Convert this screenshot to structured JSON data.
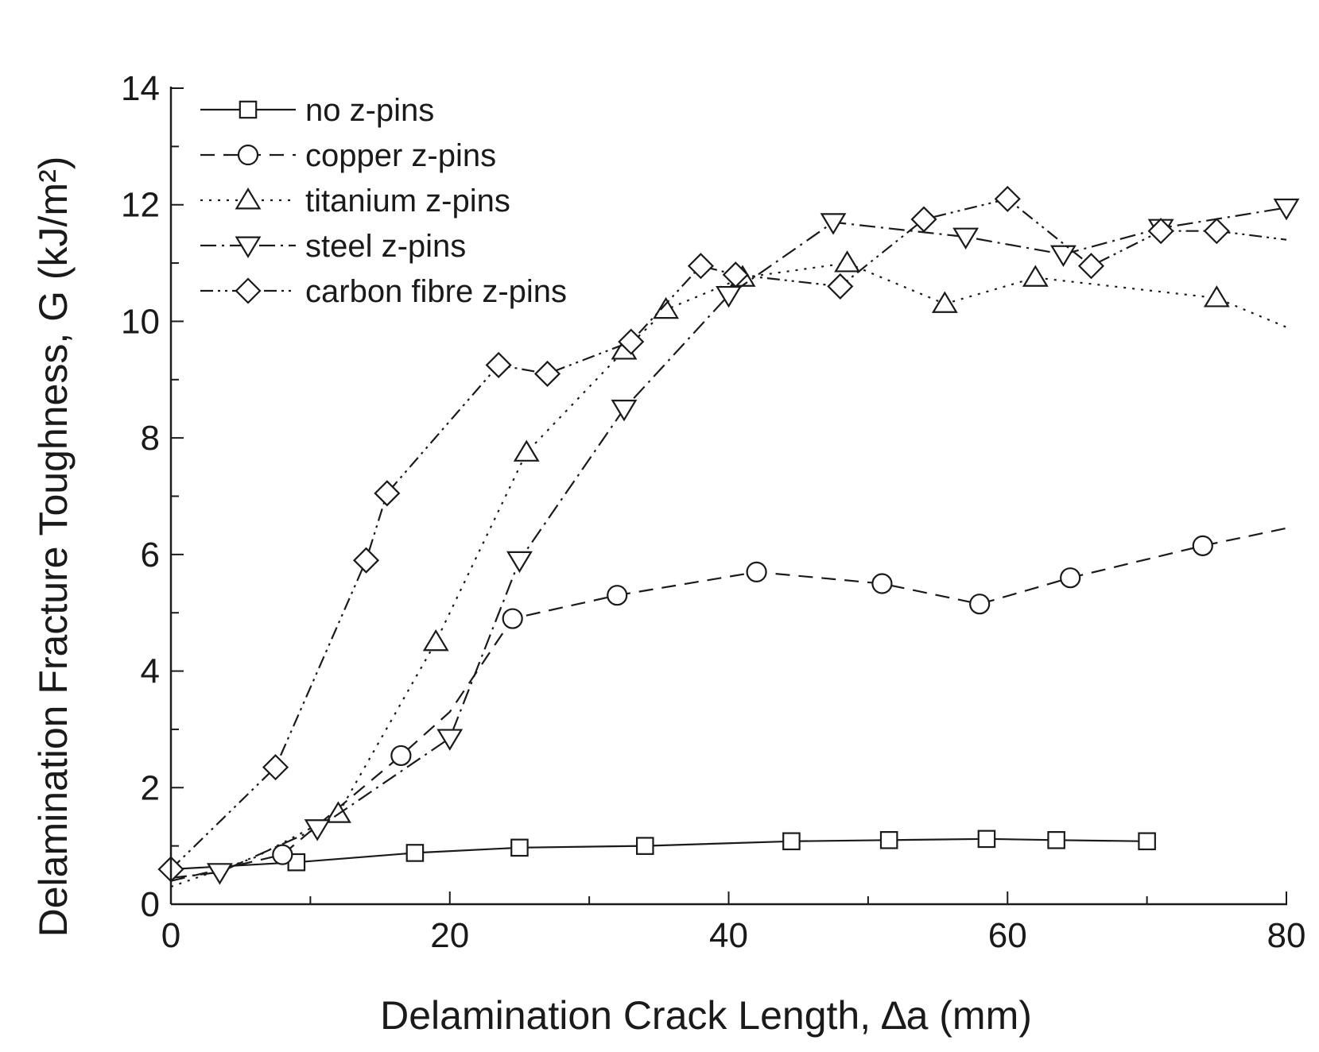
{
  "chart_data": {
    "type": "line",
    "xlabel": "Delamination Crack Length, ∆a (mm)",
    "ylabel": "Delamination Fracture Toughness, G (kJ/m²)",
    "xlim": [
      0,
      80
    ],
    "ylim": [
      0,
      14
    ],
    "xticks": [
      "0",
      "20",
      "40",
      "60",
      "80"
    ],
    "yticks": [
      "0",
      "2",
      "4",
      "6",
      "8",
      "10",
      "12",
      "14"
    ],
    "grid": false,
    "legend_position": "top-left",
    "series": [
      {
        "name": "no z-pins",
        "line_style": "solid",
        "marker": "square",
        "line": [
          [
            0,
            0.6
          ],
          [
            9,
            0.72
          ],
          [
            17.5,
            0.88
          ],
          [
            25,
            0.97
          ],
          [
            34,
            1.0
          ],
          [
            44.5,
            1.08
          ],
          [
            51.5,
            1.1
          ],
          [
            58.5,
            1.12
          ],
          [
            63.5,
            1.1
          ],
          [
            70,
            1.08
          ]
        ],
        "points": [
          [
            9,
            0.72
          ],
          [
            17.5,
            0.88
          ],
          [
            25,
            0.97
          ],
          [
            34,
            1.0
          ],
          [
            44.5,
            1.08
          ],
          [
            51.5,
            1.1
          ],
          [
            58.5,
            1.12
          ],
          [
            63.5,
            1.1
          ],
          [
            70,
            1.08
          ]
        ]
      },
      {
        "name": "copper z-pins",
        "line_style": "dashed",
        "marker": "circle",
        "line": [
          [
            0,
            0.4
          ],
          [
            8,
            0.85
          ],
          [
            16.5,
            2.55
          ],
          [
            20,
            3.3
          ],
          [
            24.5,
            4.9
          ],
          [
            32,
            5.3
          ],
          [
            42,
            5.7
          ],
          [
            51,
            5.5
          ],
          [
            58,
            5.15
          ],
          [
            64.5,
            5.6
          ],
          [
            74,
            6.15
          ],
          [
            80,
            6.45
          ]
        ],
        "points": [
          [
            8,
            0.85
          ],
          [
            16.5,
            2.55
          ],
          [
            24.5,
            4.9
          ],
          [
            32,
            5.3
          ],
          [
            42,
            5.7
          ],
          [
            51,
            5.5
          ],
          [
            58,
            5.15
          ],
          [
            64.5,
            5.6
          ],
          [
            74,
            6.15
          ]
        ]
      },
      {
        "name": "titanium z-pins",
        "line_style": "dotted",
        "marker": "triangle-up",
        "line": [
          [
            0,
            0.3
          ],
          [
            6,
            0.8
          ],
          [
            12,
            1.55
          ],
          [
            19,
            4.5
          ],
          [
            25.5,
            7.75
          ],
          [
            32.5,
            9.5
          ],
          [
            35.5,
            10.2
          ],
          [
            41,
            10.75
          ],
          [
            48.5,
            11.0
          ],
          [
            55.5,
            10.3
          ],
          [
            62,
            10.75
          ],
          [
            75,
            10.4
          ],
          [
            80,
            9.9
          ]
        ],
        "points": [
          [
            12,
            1.55
          ],
          [
            19,
            4.5
          ],
          [
            25.5,
            7.75
          ],
          [
            32.5,
            9.5
          ],
          [
            35.5,
            10.2
          ],
          [
            41,
            10.75
          ],
          [
            48.5,
            11.0
          ],
          [
            55.5,
            10.3
          ],
          [
            62,
            10.75
          ],
          [
            75,
            10.4
          ]
        ]
      },
      {
        "name": "steel z-pins",
        "line_style": "dash-dot",
        "marker": "triangle-down",
        "line": [
          [
            0,
            0.45
          ],
          [
            3.5,
            0.55
          ],
          [
            10.5,
            1.3
          ],
          [
            20,
            2.85
          ],
          [
            25,
            5.9
          ],
          [
            32.5,
            8.5
          ],
          [
            40,
            10.45
          ],
          [
            47.5,
            11.7
          ],
          [
            57,
            11.45
          ],
          [
            64,
            11.15
          ],
          [
            71,
            11.6
          ],
          [
            80,
            11.95
          ]
        ],
        "points": [
          [
            3.5,
            0.55
          ],
          [
            10.5,
            1.3
          ],
          [
            20,
            2.85
          ],
          [
            25,
            5.9
          ],
          [
            32.5,
            8.5
          ],
          [
            40,
            10.45
          ],
          [
            47.5,
            11.7
          ],
          [
            57,
            11.45
          ],
          [
            64,
            11.15
          ],
          [
            71,
            11.6
          ],
          [
            80,
            11.95
          ]
        ]
      },
      {
        "name": "carbon fibre z-pins",
        "line_style": "dash-dot-dot",
        "marker": "diamond",
        "line": [
          [
            0,
            0.6
          ],
          [
            7.5,
            2.35
          ],
          [
            14,
            5.9
          ],
          [
            15.5,
            7.05
          ],
          [
            23.5,
            9.25
          ],
          [
            27,
            9.1
          ],
          [
            33,
            9.65
          ],
          [
            38,
            10.95
          ],
          [
            40.5,
            10.8
          ],
          [
            48,
            10.6
          ],
          [
            54,
            11.75
          ],
          [
            60,
            12.1
          ],
          [
            66,
            10.95
          ],
          [
            71,
            11.55
          ],
          [
            75,
            11.55
          ],
          [
            80,
            11.4
          ]
        ],
        "points": [
          [
            0,
            0.6
          ],
          [
            7.5,
            2.35
          ],
          [
            14,
            5.9
          ],
          [
            15.5,
            7.05
          ],
          [
            23.5,
            9.25
          ],
          [
            27,
            9.1
          ],
          [
            33,
            9.65
          ],
          [
            38,
            10.95
          ],
          [
            40.5,
            10.8
          ],
          [
            48,
            10.6
          ],
          [
            54,
            11.75
          ],
          [
            60,
            12.1
          ],
          [
            66,
            10.95
          ],
          [
            71,
            11.55
          ],
          [
            75,
            11.55
          ]
        ]
      }
    ]
  }
}
